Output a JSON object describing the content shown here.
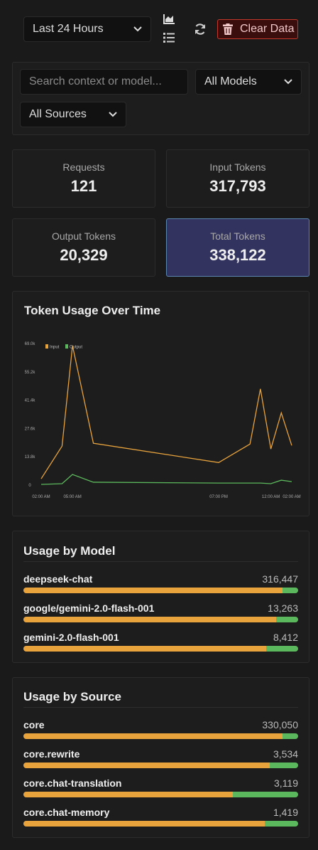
{
  "toolbar": {
    "range": "Last 24 Hours",
    "clear": "Clear Data"
  },
  "filters": {
    "search_placeholder": "Search context or model...",
    "model": "All Models",
    "source": "All Sources"
  },
  "stats": [
    {
      "label": "Requests",
      "value": "121"
    },
    {
      "label": "Input Tokens",
      "value": "317,793"
    },
    {
      "label": "Output Tokens",
      "value": "20,329"
    },
    {
      "label": "Total Tokens",
      "value": "338,122"
    }
  ],
  "chart_data": [
    {
      "type": "line",
      "title": "Token Usage Over Time",
      "x": [
        0,
        2,
        3,
        5,
        17,
        20,
        21,
        22,
        23,
        24
      ],
      "xlim": [
        0,
        24
      ],
      "xticks": [
        {
          "value": 0,
          "label": "02:00 AM"
        },
        {
          "value": 3,
          "label": "05:00 AM"
        },
        {
          "value": 17,
          "label": "07:00 PM"
        },
        {
          "value": 22,
          "label": "12:00 AM"
        },
        {
          "value": 24,
          "label": "02:00 AM"
        }
      ],
      "ylim": [
        0,
        69000
      ],
      "yticks": [
        0,
        {
          "value": 13800,
          "label": "13.8k"
        },
        {
          "value": 27600,
          "label": "27.6k"
        },
        {
          "value": 41400,
          "label": "41.4k"
        },
        {
          "value": 55200,
          "label": "55.2k"
        },
        {
          "value": 69000,
          "label": "69.0k"
        }
      ],
      "series": [
        {
          "name": "Input",
          "color": "#e8a33d",
          "values": [
            3100,
            19000,
            68000,
            20400,
            11000,
            20000,
            46900,
            17600,
            35200,
            19300
          ]
        },
        {
          "name": "Output",
          "color": "#5cb85c",
          "values": [
            350,
            700,
            5200,
            1400,
            1000,
            1000,
            1000,
            700,
            2400,
            1700
          ]
        }
      ]
    },
    {
      "type": "bar",
      "title": "Usage by Model",
      "categories": [
        "deepseek-chat",
        "google/gemini-2.0-flash-001",
        "gemini-2.0-flash-001"
      ],
      "values": [
        316447,
        13263,
        8412
      ],
      "value_labels": [
        "316,447",
        "13,263",
        "8,412"
      ],
      "series": [
        {
          "color": "#e8a33d",
          "values": [
            298147,
            12203,
            7443
          ]
        },
        {
          "color": "#5cb85c",
          "values": [
            18300,
            1060,
            969
          ]
        }
      ]
    },
    {
      "type": "bar",
      "title": "Usage by Source",
      "categories": [
        "core",
        "core.rewrite",
        "core.chat-translation",
        "core.chat-memory"
      ],
      "values": [
        330050,
        3534,
        3119,
        1419
      ],
      "value_labels": [
        "330,050",
        "3,534",
        "3,119",
        "1,419"
      ],
      "series": [
        {
          "color": "#e8a33d",
          "values": [
            310999,
            3170,
            2377,
            1247
          ]
        },
        {
          "color": "#5cb85c",
          "values": [
            19051,
            364,
            742,
            172
          ]
        }
      ]
    }
  ]
}
